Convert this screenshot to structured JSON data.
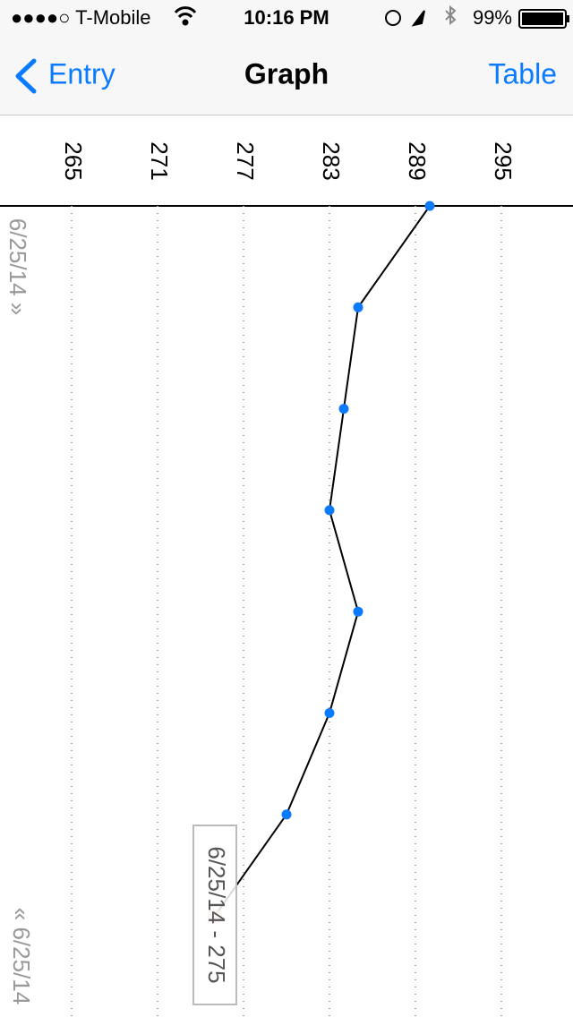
{
  "status_bar": {
    "carrier": "●●●●○ T-Mobile",
    "time": "10:16 PM",
    "battery": "99%"
  },
  "nav": {
    "back": "Entry",
    "title": "Graph",
    "right": "Table"
  },
  "chart_data": {
    "type": "line",
    "values": [
      290,
      285,
      284,
      283,
      285,
      283,
      280,
      275
    ],
    "color": "#0a7aff",
    "line_color": "#000000",
    "xlim": [
      260,
      300
    ],
    "xticks": [
      265,
      271,
      277,
      283,
      289,
      295
    ],
    "grid": true,
    "start_label": "6/25/14 »",
    "end_label": "« 6/25/14",
    "annotation": "6/25/14 - 275"
  }
}
